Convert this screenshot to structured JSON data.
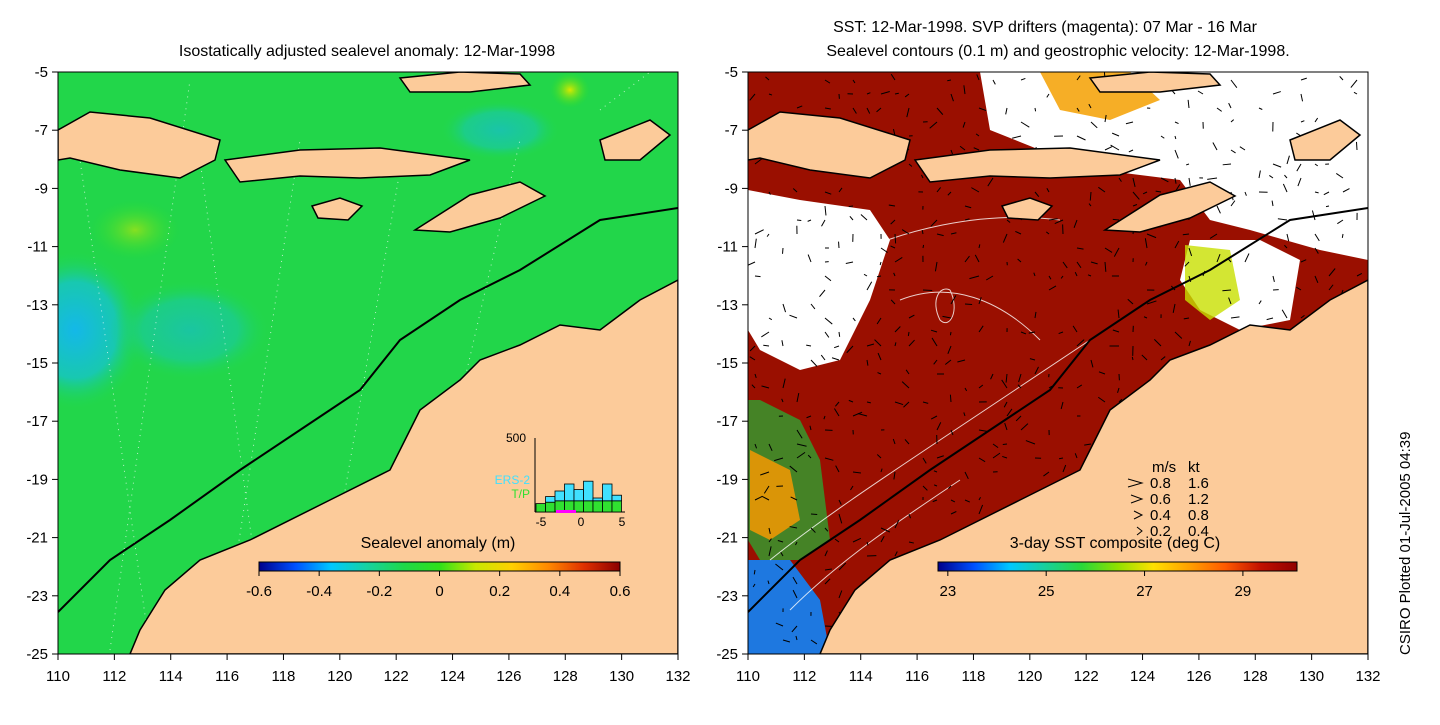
{
  "left_panel": {
    "title": "Isostatically adjusted sealevel anomaly: 12-Mar-1998",
    "colorbar": {
      "title": "Sealevel anomaly (m)",
      "tick_labels": [
        "-0.6",
        "-0.4",
        "-0.2",
        "0",
        "0.2",
        "0.4",
        "0.6"
      ],
      "range": [
        -0.6,
        0.6
      ],
      "colors": [
        "#00008b",
        "#0050ff",
        "#00c8ff",
        "#16d2a0",
        "#1fd84a",
        "#2ee01a",
        "#c8e800",
        "#ffd000",
        "#ff8a00",
        "#e03000",
        "#8b0000"
      ]
    },
    "histogram": {
      "ymax_label": "500",
      "x_tick_labels": [
        "-5",
        "0",
        "5"
      ],
      "legend": [
        "ERS-2",
        "T/P"
      ],
      "legend_colors": [
        "#40e0ff",
        "#30e030"
      ],
      "bars_ers2": [
        60,
        110,
        150,
        200,
        160,
        220,
        100,
        200,
        120
      ],
      "bars_tp": [
        60,
        70,
        80,
        80,
        80,
        80,
        80,
        80,
        80
      ]
    }
  },
  "right_panel": {
    "title_line1": "SST: 12-Mar-1998. SVP drifters (magenta): 07 Mar - 16 Mar",
    "title_line2": "Sealevel contours (0.1 m) and geostrophic velocity: 12-Mar-1998.",
    "colorbar": {
      "title": "3-day SST composite (deg C)",
      "tick_labels": [
        "23",
        "25",
        "27",
        "29"
      ],
      "range": [
        22.8,
        30.1
      ],
      "colors": [
        "#00008b",
        "#0050ff",
        "#00c8ff",
        "#18d09a",
        "#28d83a",
        "#90e000",
        "#ffe000",
        "#ffa000",
        "#ff5a00",
        "#c01000",
        "#900000"
      ]
    },
    "velocity_legend": {
      "header_ms": "m/s",
      "header_kt": "kt",
      "rows": [
        {
          "ms": "0.8",
          "kt": "1.6"
        },
        {
          "ms": "0.6",
          "kt": "1.2"
        },
        {
          "ms": "0.4",
          "kt": "0.8"
        },
        {
          "ms": "0.2",
          "kt": "0.4"
        }
      ]
    }
  },
  "axes": {
    "x_tick_labels": [
      "110",
      "112",
      "114",
      "116",
      "118",
      "120",
      "122",
      "124",
      "126",
      "128",
      "130",
      "132"
    ],
    "y_tick_labels": [
      "-5",
      "-7",
      "-9",
      "-11",
      "-13",
      "-15",
      "-17",
      "-19",
      "-21",
      "-23",
      "-25"
    ],
    "lon_range": [
      110,
      132
    ],
    "lat_range": [
      -25,
      -5
    ]
  },
  "colors": {
    "land": "#fccb9a",
    "sea_anomaly_base": "#1fd84a",
    "sst_warm": "#9a0f00",
    "cloud": "#ffffff"
  },
  "credit": "CSIRO Plotted 01-Jul-2005 04:39"
}
